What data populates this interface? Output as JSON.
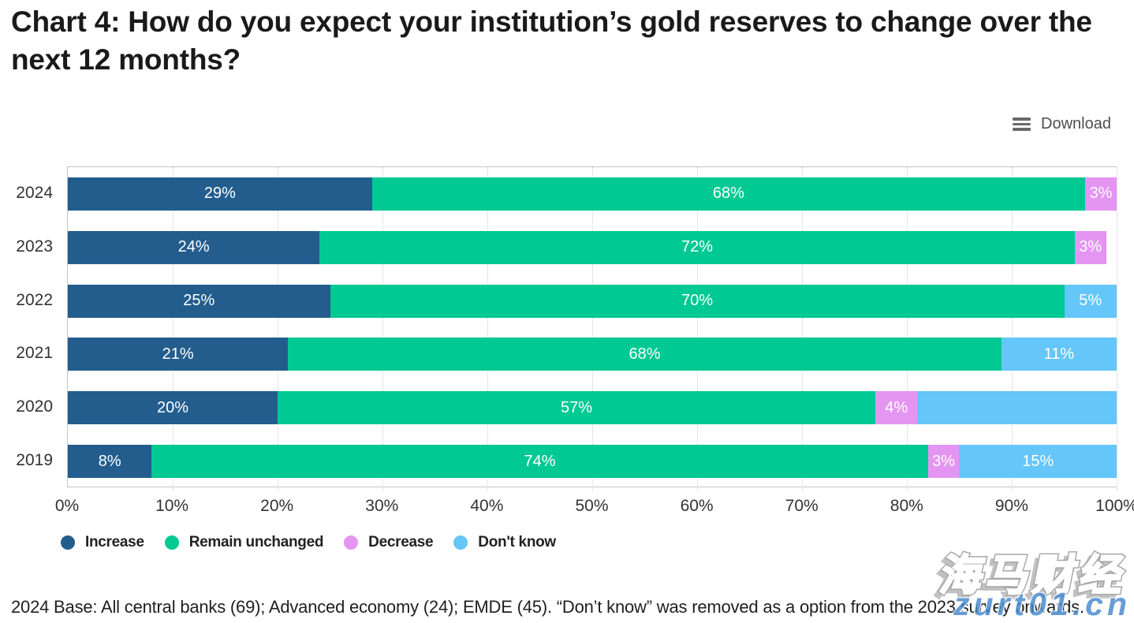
{
  "title": {
    "line1": "Chart 4: How do you expect your institution’s gold reserves to change over the",
    "line2": "next 12 months?"
  },
  "toolbar": {
    "download_label": "Download"
  },
  "chart_data": {
    "type": "bar",
    "orientation": "horizontal",
    "stacked": true,
    "categories": [
      "2024",
      "2023",
      "2022",
      "2021",
      "2020",
      "2019"
    ],
    "series": [
      {
        "name": "Increase",
        "color": "#235d8d",
        "values": [
          29,
          24,
          25,
          21,
          20,
          8
        ],
        "labels": [
          "29%",
          "24%",
          "25%",
          "21%",
          "20%",
          "8%"
        ]
      },
      {
        "name": "Remain unchanged",
        "color": "#00c993",
        "values": [
          68,
          72,
          70,
          68,
          57,
          74
        ],
        "labels": [
          "68%",
          "72%",
          "70%",
          "68%",
          "57%",
          "74%"
        ]
      },
      {
        "name": "Decrease",
        "color": "#e495f1",
        "values": [
          3,
          3,
          0,
          0,
          4,
          3
        ],
        "labels": [
          "3%",
          "3%",
          "",
          "",
          "4%",
          "3%"
        ]
      },
      {
        "name": "Don't know",
        "color": "#64c6f9",
        "values": [
          0,
          0,
          5,
          11,
          19,
          15
        ],
        "labels": [
          "",
          "",
          "5%",
          "11%",
          "",
          "15%"
        ]
      }
    ],
    "xticks": [
      "0%",
      "10%",
      "20%",
      "30%",
      "40%",
      "50%",
      "60%",
      "70%",
      "80%",
      "90%",
      "100%"
    ],
    "xlim": [
      0,
      100
    ],
    "grid": "vertical-dotted",
    "legend_position": "bottom-left"
  },
  "footer": {
    "text": "2024 Base: All central banks (69); Advanced economy (24); EMDE (45). “Don’t know” was removed as a option from the 2023 survey onwards."
  },
  "watermark": {
    "cjk": "海马财经",
    "domain": "zurt01.cn"
  }
}
